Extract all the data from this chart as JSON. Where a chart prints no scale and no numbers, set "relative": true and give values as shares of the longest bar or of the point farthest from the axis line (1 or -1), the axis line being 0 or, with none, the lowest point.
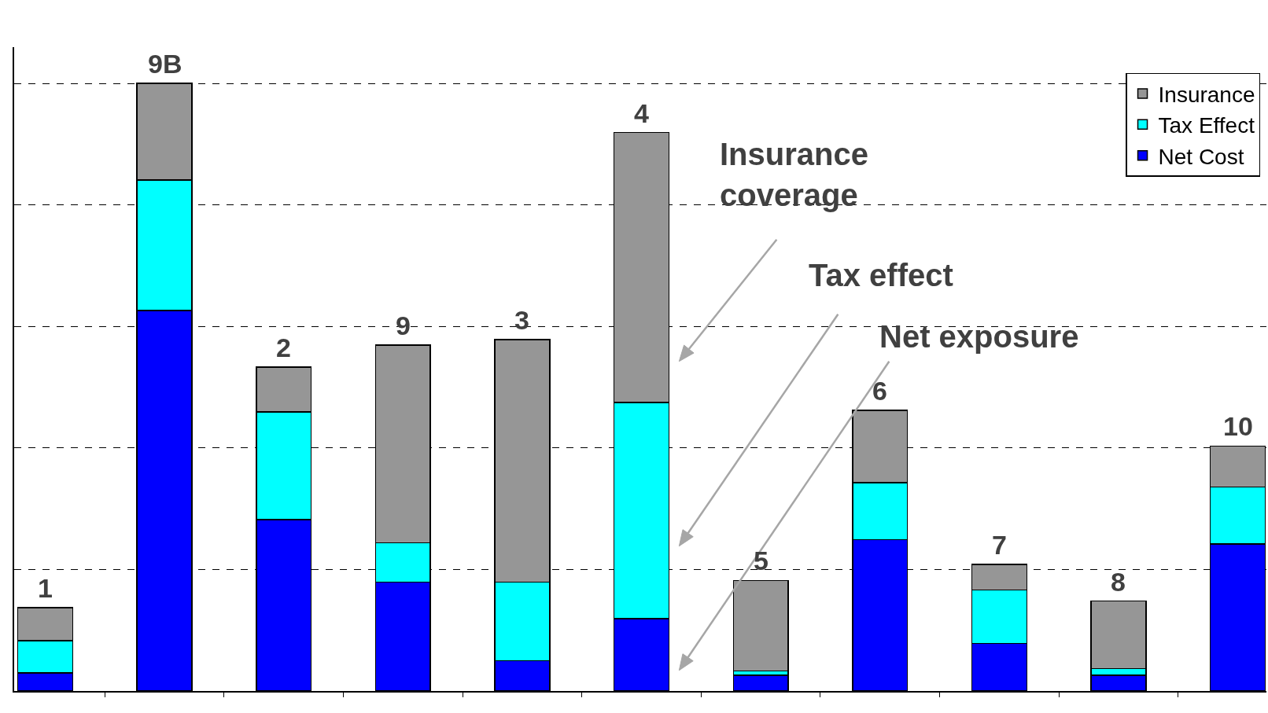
{
  "chart_data": {
    "type": "bar",
    "stacked": true,
    "relative": true,
    "grid": "y",
    "legend": "top right",
    "categories": [
      "1",
      "9B",
      "2",
      "9",
      "3",
      "4",
      "5",
      "6",
      "7",
      "8",
      "10"
    ],
    "series": [
      {
        "name": "Net Cost",
        "color": "#0000ff",
        "values": [
          0.03,
          0.626,
          0.282,
          0.179,
          0.05,
          0.119,
          0.026,
          0.249,
          0.078,
          0.026,
          0.242
        ]
      },
      {
        "name": "Tax Effect",
        "color": "#00ffff",
        "values": [
          0.053,
          0.215,
          0.177,
          0.065,
          0.129,
          0.356,
          0.007,
          0.094,
          0.088,
          0.011,
          0.094
        ]
      },
      {
        "name": "Insurance",
        "color": "#969696",
        "values": [
          0.054,
          0.159,
          0.074,
          0.325,
          0.399,
          0.444,
          0.149,
          0.119,
          0.042,
          0.111,
          0.067
        ]
      }
    ],
    "annotations": [
      "Insurance coverage",
      "Tax effect",
      "Net exposure"
    ]
  }
}
